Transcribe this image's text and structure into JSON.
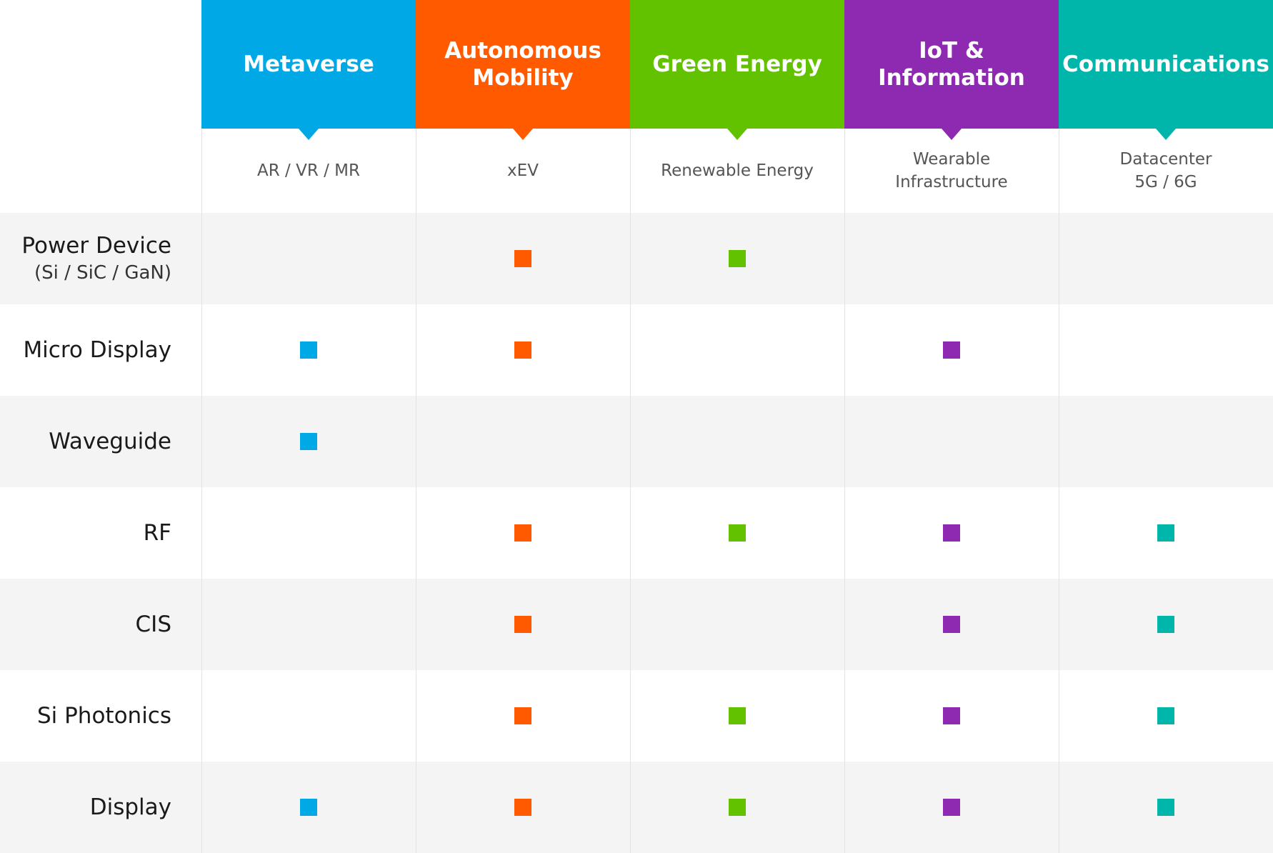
{
  "colors": {
    "odd_row": "#f4f4f4",
    "even_row": "#ffffff"
  },
  "columns": [
    {
      "title": "Metaverse",
      "subtitle": "AR / VR / MR",
      "color": "#00a8e6"
    },
    {
      "title": "Autonomous\nMobility",
      "subtitle": "xEV",
      "color": "#ff5a00"
    },
    {
      "title": "Green Energy",
      "subtitle": "Renewable Energy",
      "color": "#62c200"
    },
    {
      "title": "IoT &\nInformation",
      "subtitle": "Wearable\nInfrastructure",
      "color": "#8e2ab1"
    },
    {
      "title": "Communications",
      "subtitle": "Datacenter\n5G / 6G",
      "color": "#00b5a9"
    }
  ],
  "rows": [
    {
      "label": "Power Device",
      "sublabel": "(Si / SiC / GaN)",
      "marks": [
        false,
        true,
        true,
        false,
        false
      ]
    },
    {
      "label": "Micro Display",
      "sublabel": "",
      "marks": [
        true,
        true,
        false,
        true,
        false
      ]
    },
    {
      "label": "Waveguide",
      "sublabel": "",
      "marks": [
        true,
        false,
        false,
        false,
        false
      ]
    },
    {
      "label": "RF",
      "sublabel": "",
      "marks": [
        false,
        true,
        true,
        true,
        true
      ]
    },
    {
      "label": "CIS",
      "sublabel": "",
      "marks": [
        false,
        true,
        false,
        true,
        true
      ]
    },
    {
      "label": "Si Photonics",
      "sublabel": "",
      "marks": [
        false,
        true,
        true,
        true,
        true
      ]
    },
    {
      "label": "Display",
      "sublabel": "",
      "marks": [
        true,
        true,
        true,
        true,
        true
      ]
    }
  ]
}
